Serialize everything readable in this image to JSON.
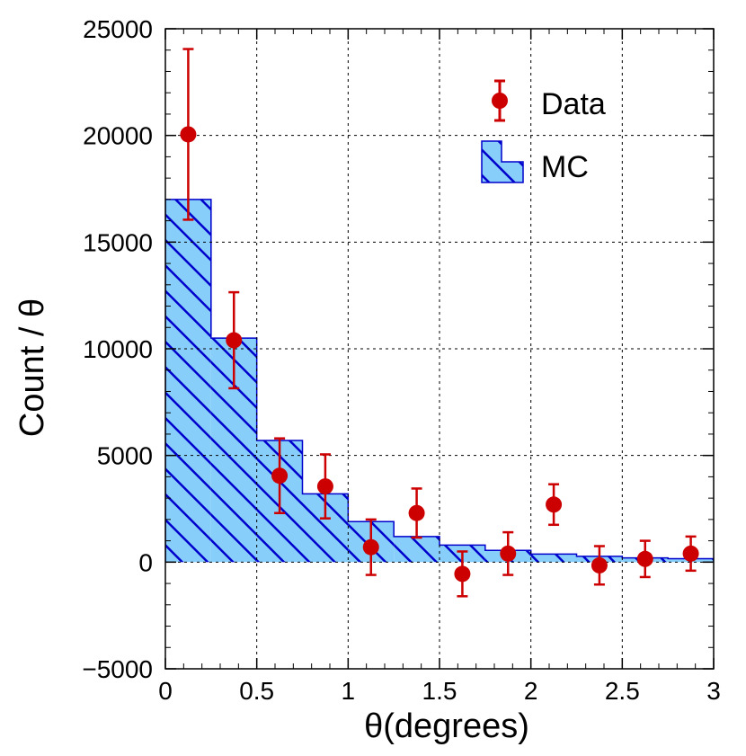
{
  "chart_data": {
    "type": "bar",
    "xlabel": "θ(degrees)",
    "ylabel": "Count / θ",
    "xlim": [
      0,
      3
    ],
    "ylim": [
      -5000,
      25000
    ],
    "xticks": [
      "0",
      "0.5",
      "1",
      "1.5",
      "2",
      "2.5",
      "3"
    ],
    "yticks": [
      "−5000",
      "0",
      "5000",
      "10000",
      "15000",
      "20000",
      "25000"
    ],
    "grid": true,
    "legend_position": "top-right",
    "colors": {
      "data": "#cc0000",
      "mc_fill": "#87cefa",
      "mc_edge": "#0000cc"
    },
    "series": [
      {
        "name": "MC",
        "kind": "histogram",
        "bin_edges": [
          0,
          0.25,
          0.5,
          0.75,
          1.0,
          1.25,
          1.5,
          1.75,
          2.0,
          2.25,
          2.5,
          2.75,
          3.0
        ],
        "values": [
          17000,
          10500,
          5700,
          3200,
          1900,
          1200,
          800,
          550,
          380,
          270,
          200,
          160
        ]
      },
      {
        "name": "Data",
        "kind": "errorbar",
        "x": [
          0.125,
          0.375,
          0.625,
          0.875,
          1.125,
          1.375,
          1.625,
          1.875,
          2.125,
          2.375,
          2.625,
          2.875
        ],
        "y": [
          20050,
          10400,
          4050,
          3550,
          700,
          2300,
          -550,
          400,
          2700,
          -150,
          150,
          400
        ],
        "yerr_low": [
          4000,
          2250,
          1750,
          1500,
          1300,
          1150,
          1050,
          1000,
          950,
          900,
          850,
          800
        ],
        "yerr_high": [
          4000,
          2250,
          1750,
          1500,
          1300,
          1150,
          1050,
          1000,
          950,
          900,
          850,
          800
        ]
      }
    ]
  }
}
